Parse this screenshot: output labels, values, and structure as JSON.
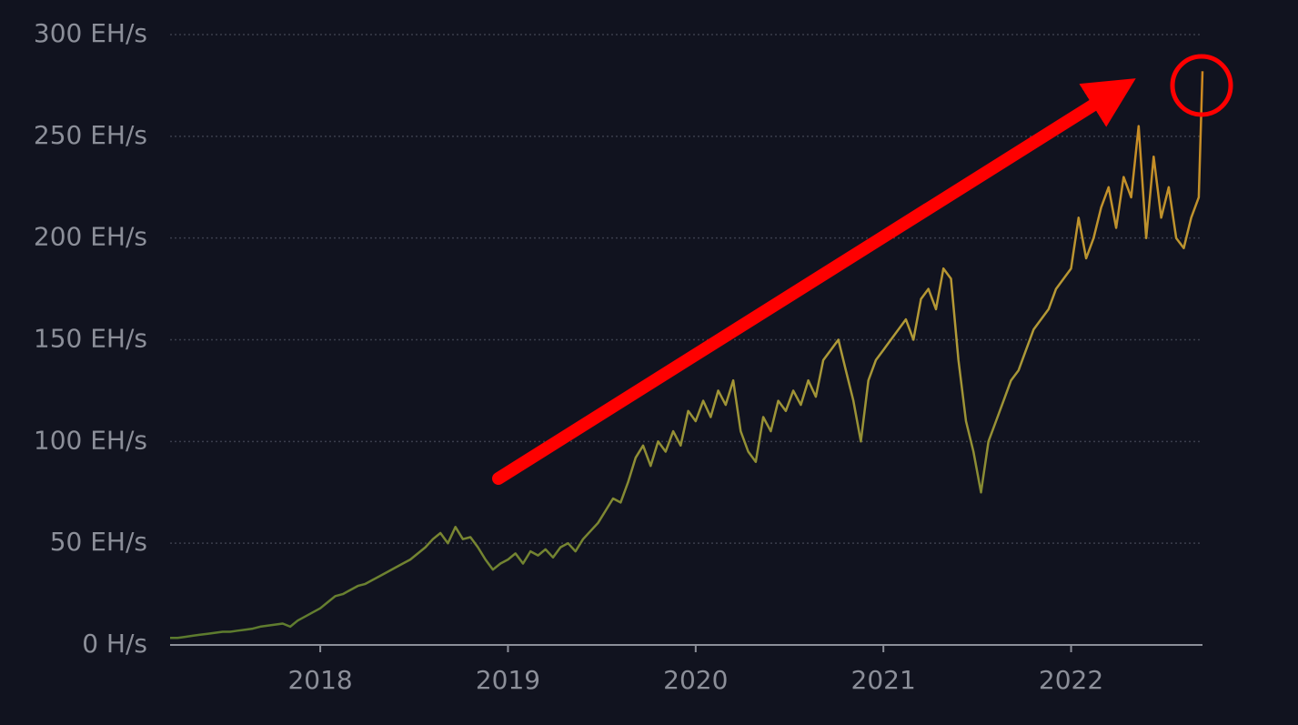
{
  "chart_data": {
    "type": "line",
    "x": [
      2017.2,
      2017.24,
      2017.28,
      2017.32,
      2017.36,
      2017.4,
      2017.44,
      2017.48,
      2017.52,
      2017.56,
      2017.6,
      2017.64,
      2017.68,
      2017.72,
      2017.76,
      2017.8,
      2017.84,
      2017.88,
      2017.92,
      2017.96,
      2018,
      2018.04,
      2018.08,
      2018.12,
      2018.16,
      2018.2,
      2018.24,
      2018.28,
      2018.32,
      2018.36,
      2018.4,
      2018.44,
      2018.48,
      2018.52,
      2018.56,
      2018.6,
      2018.64,
      2018.68,
      2018.72,
      2018.76,
      2018.8,
      2018.84,
      2018.88,
      2018.92,
      2018.96,
      2019,
      2019.04,
      2019.08,
      2019.12,
      2019.16,
      2019.2,
      2019.24,
      2019.28,
      2019.32,
      2019.36,
      2019.4,
      2019.44,
      2019.48,
      2019.52,
      2019.56,
      2019.6,
      2019.64,
      2019.68,
      2019.72,
      2019.76,
      2019.8,
      2019.84,
      2019.88,
      2019.92,
      2019.96,
      2020,
      2020.04,
      2020.08,
      2020.12,
      2020.16,
      2020.2,
      2020.24,
      2020.28,
      2020.32,
      2020.36,
      2020.4,
      2020.44,
      2020.48,
      2020.52,
      2020.56,
      2020.6,
      2020.64,
      2020.68,
      2020.72,
      2020.76,
      2020.8,
      2020.84,
      2020.88,
      2020.92,
      2020.96,
      2021,
      2021.04,
      2021.08,
      2021.12,
      2021.16,
      2021.2,
      2021.24,
      2021.28,
      2021.32,
      2021.36,
      2021.4,
      2021.44,
      2021.48,
      2021.52,
      2021.56,
      2021.6,
      2021.64,
      2021.68,
      2021.72,
      2021.76,
      2021.8,
      2021.84,
      2021.88,
      2021.92,
      2021.96,
      2022,
      2022.04,
      2022.08,
      2022.12,
      2022.16,
      2022.2,
      2022.24,
      2022.28,
      2022.32,
      2022.36,
      2022.4,
      2022.44,
      2022.48,
      2022.52,
      2022.56,
      2022.6,
      2022.64,
      2022.68,
      2022.7
    ],
    "values": [
      3.5,
      3.5,
      4,
      4.5,
      5,
      5.5,
      6,
      6.5,
      6.5,
      7,
      7.5,
      8,
      9,
      9.5,
      10,
      10.5,
      9,
      12,
      14,
      16,
      18,
      21,
      24,
      25,
      27,
      29,
      30,
      32,
      34,
      36,
      38,
      40,
      42,
      45,
      48,
      52,
      55,
      50,
      58,
      52,
      53,
      48,
      42,
      37,
      40,
      42,
      45,
      40,
      46,
      44,
      47,
      43,
      48,
      50,
      46,
      52,
      56,
      60,
      66,
      72,
      70,
      80,
      92,
      98,
      88,
      100,
      95,
      105,
      98,
      115,
      110,
      120,
      112,
      125,
      118,
      130,
      105,
      95,
      90,
      112,
      105,
      120,
      115,
      125,
      118,
      130,
      122,
      140,
      145,
      150,
      135,
      120,
      100,
      130,
      140,
      145,
      150,
      155,
      160,
      150,
      170,
      175,
      165,
      185,
      180,
      140,
      110,
      95,
      75,
      100,
      110,
      120,
      130,
      135,
      145,
      155,
      160,
      165,
      175,
      180,
      185,
      210,
      190,
      200,
      215,
      225,
      205,
      230,
      220,
      255,
      200,
      240,
      210,
      225,
      200,
      195,
      210,
      220,
      282
    ],
    "gradient": [
      "#5a7a2e",
      "#b09a38",
      "#d4861c"
    ],
    "xlim": [
      2017.2,
      2022.7
    ],
    "xticks": [
      2018,
      2019,
      2020,
      2021,
      2022
    ],
    "ylim": [
      0,
      300
    ],
    "yticks": [
      {
        "value": 0,
        "label": "0 H/s"
      },
      {
        "value": 50,
        "label": "50 EH/s"
      },
      {
        "value": 100,
        "label": "100 EH/s"
      },
      {
        "value": 150,
        "label": "150 EH/s"
      },
      {
        "value": 200,
        "label": "200 EH/s"
      },
      {
        "value": 250,
        "label": "250 EH/s"
      },
      {
        "value": 300,
        "label": "300 EH/s"
      }
    ],
    "grid": true
  }
}
